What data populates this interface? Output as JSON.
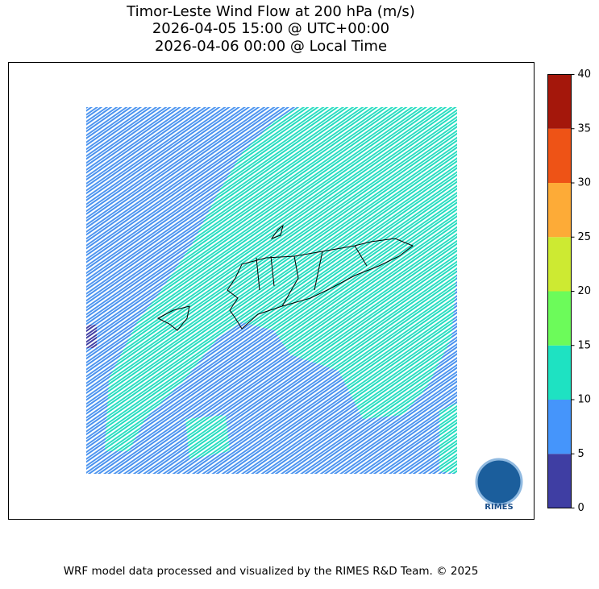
{
  "title": [
    "Timor-Leste Wind Flow at 200 hPa (m/s)",
    "2026-04-05 15:00 @ UTC+00:00",
    "2026-04-06 00:00 @ Local Time"
  ],
  "colorbar": {
    "lim": [
      0,
      40
    ],
    "ticks": [
      0,
      5,
      10,
      15,
      20,
      25,
      30,
      35,
      40
    ],
    "colors": [
      "#3f3ea3",
      "#4595fb",
      "#1ee2c2",
      "#6cfb5a",
      "#cdea32",
      "#fdab37",
      "#ee5316",
      "#a4170b"
    ]
  },
  "logo": "RIMES",
  "footer": "WRF model data processed and visualized by the RIMES R&D Team. © 2025"
}
